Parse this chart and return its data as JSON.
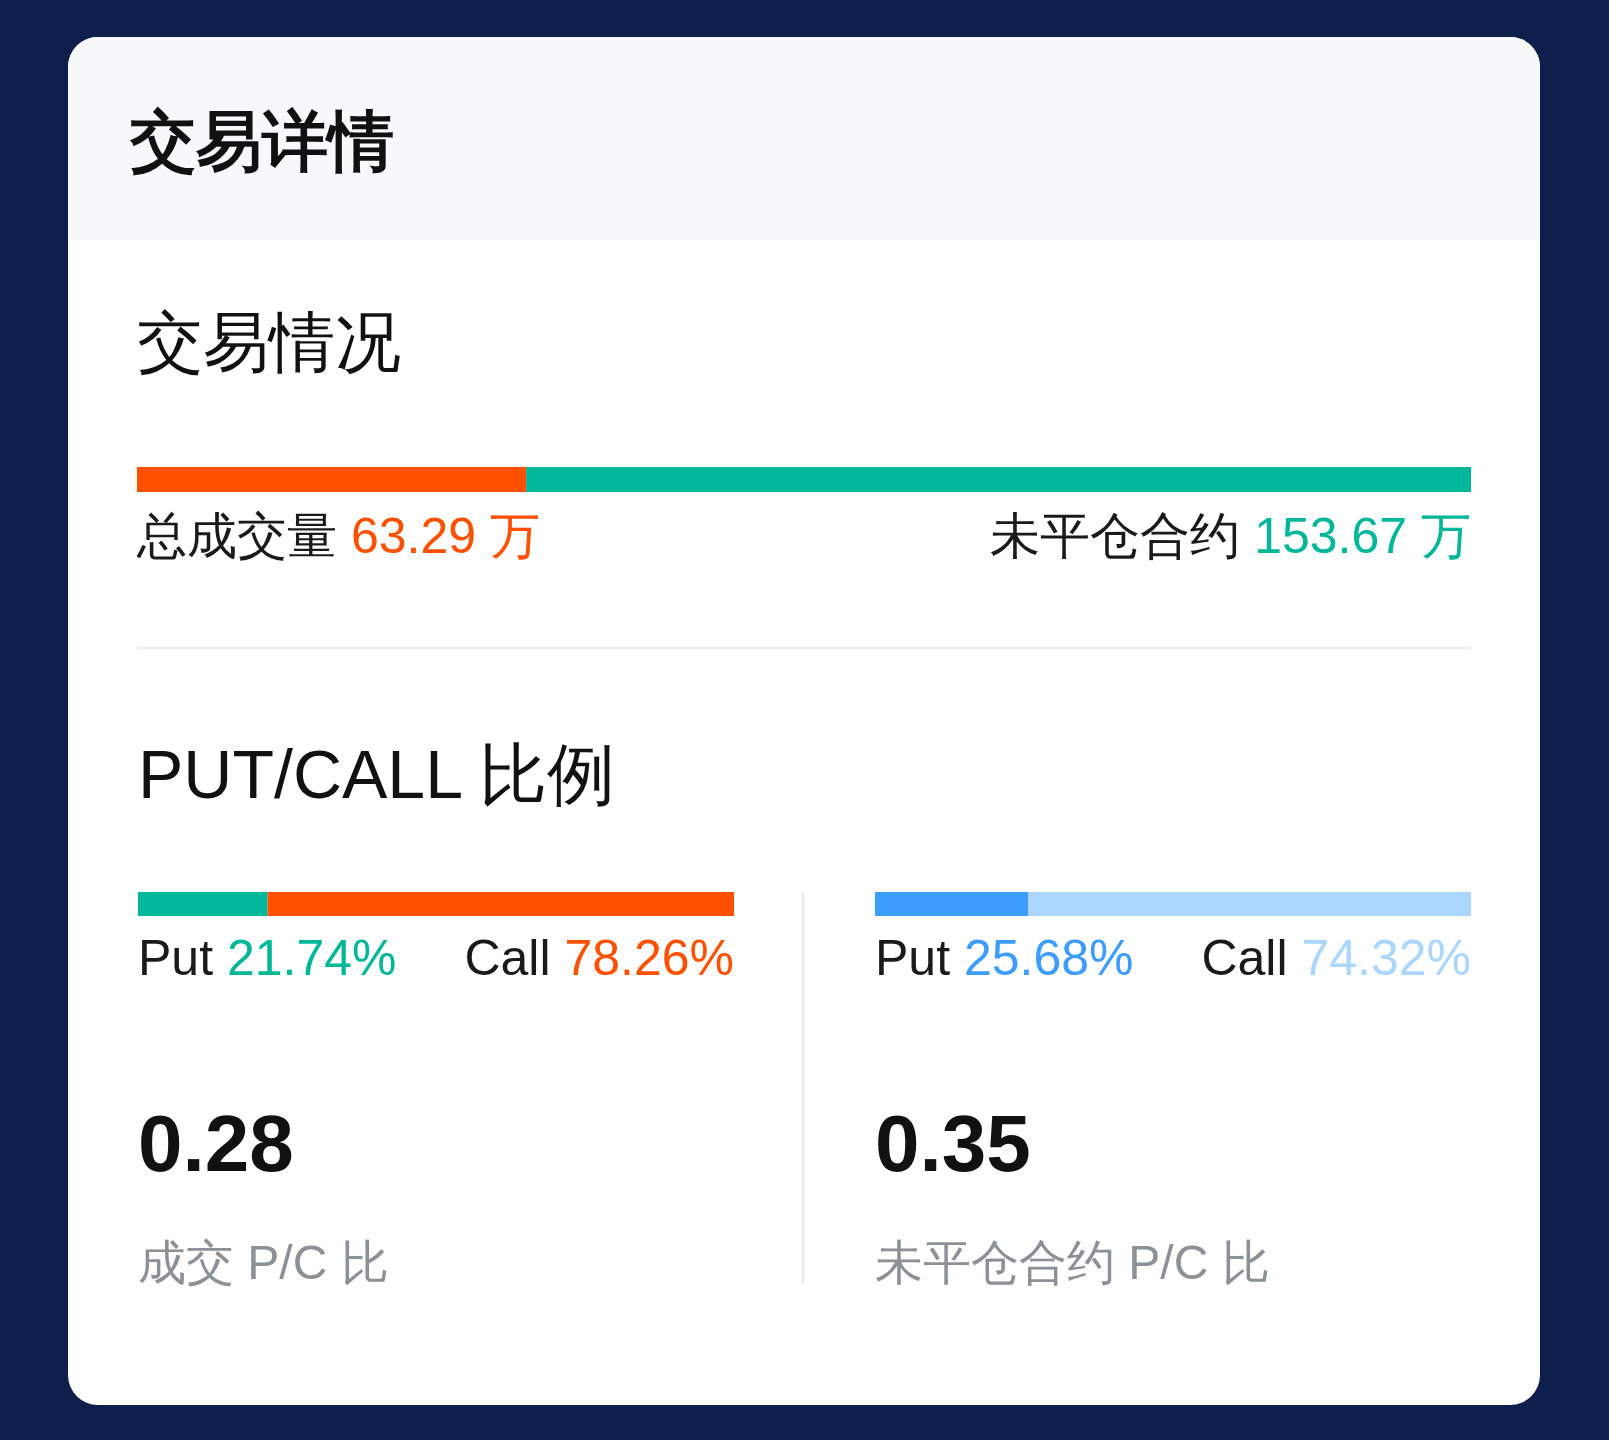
{
  "chart_data": [
    {
      "type": "bar",
      "orientation": "horizontal",
      "stacked": true,
      "title": "交易详情",
      "subtitle": "交易情况",
      "categories": [
        null
      ],
      "series": [
        {
          "name": "总成交量",
          "color": "#ff5000",
          "values": [
            63.29
          ],
          "value_labels": [
            "63.29 万"
          ]
        },
        {
          "name": "未平仓合约",
          "color": "#00b899",
          "values": [
            153.67
          ],
          "value_labels": [
            "153.67 万"
          ]
        }
      ]
    },
    {
      "type": "bar",
      "orientation": "horizontal",
      "stacked": true,
      "title": "PUT/CALL 比例",
      "categories": [
        null
      ],
      "series": [
        {
          "name": "Put",
          "color": "#00b899",
          "values": [
            21.74
          ],
          "value_labels": [
            "21.74%"
          ]
        },
        {
          "name": "Call",
          "color": "#ff5000",
          "values": [
            78.26
          ],
          "value_labels": [
            "78.26%"
          ]
        }
      ],
      "annotations": [
        "0.28",
        "成交 P/C 比"
      ]
    },
    {
      "type": "bar",
      "orientation": "horizontal",
      "stacked": true,
      "categories": [
        null
      ],
      "series": [
        {
          "name": "Put",
          "color": "#3d9dfd",
          "values": [
            25.68
          ],
          "value_labels": [
            "25.68%"
          ]
        },
        {
          "name": "Call",
          "color": "#abd6ff",
          "values": [
            74.32
          ],
          "value_labels": [
            "74.32%"
          ]
        }
      ],
      "annotations": [
        "0.35",
        "未平仓合约 P/C 比"
      ]
    }
  ]
}
